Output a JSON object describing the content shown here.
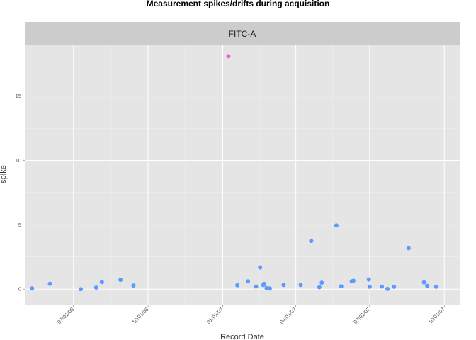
{
  "chart_data": {
    "type": "scatter",
    "title": "Measurement spikes/drifts during acquisition",
    "facet_label": "FITC-A",
    "xlabel": "Record Date",
    "ylabel": "spike",
    "x_ticks": [
      {
        "date": "2006-07-01",
        "label": "07/01/06"
      },
      {
        "date": "2006-10-01",
        "label": "10/01/06"
      },
      {
        "date": "2007-01-01",
        "label": "01/01/07"
      },
      {
        "date": "2007-04-01",
        "label": "04/01/07"
      },
      {
        "date": "2007-07-01",
        "label": "07/01/07"
      },
      {
        "date": "2007-10-01",
        "label": "10/01/07"
      }
    ],
    "y_ticks": [
      0,
      5,
      10,
      15
    ],
    "xlim": [
      "2006-05-02",
      "2007-10-20"
    ],
    "ylim": [
      -1.2,
      19.0
    ],
    "grid": true,
    "colors": {
      "panel_bg": "#e5e5e5",
      "strip_bg": "#cccccc",
      "grid": "#ffffff",
      "point_low": "#5b9bff",
      "point_high": "#f25ee2"
    },
    "points": [
      {
        "x": "2006-05-11",
        "y": 0.05
      },
      {
        "x": "2006-06-02",
        "y": 0.42
      },
      {
        "x": "2006-07-10",
        "y": 0.0
      },
      {
        "x": "2006-07-29",
        "y": 0.12
      },
      {
        "x": "2006-08-05",
        "y": 0.55
      },
      {
        "x": "2006-08-28",
        "y": 0.72
      },
      {
        "x": "2006-09-13",
        "y": 0.28
      },
      {
        "x": "2007-01-08",
        "y": 18.1,
        "highlight": true
      },
      {
        "x": "2007-01-19",
        "y": 0.3
      },
      {
        "x": "2007-02-01",
        "y": 0.6
      },
      {
        "x": "2007-02-11",
        "y": 0.2
      },
      {
        "x": "2007-02-16",
        "y": 1.68
      },
      {
        "x": "2007-02-20",
        "y": 0.32
      },
      {
        "x": "2007-02-21",
        "y": 0.4
      },
      {
        "x": "2007-02-24",
        "y": 0.08
      },
      {
        "x": "2007-02-28",
        "y": 0.05
      },
      {
        "x": "2007-03-17",
        "y": 0.32
      },
      {
        "x": "2007-04-07",
        "y": 0.32
      },
      {
        "x": "2007-04-20",
        "y": 3.75
      },
      {
        "x": "2007-04-30",
        "y": 0.15
      },
      {
        "x": "2007-05-03",
        "y": 0.5
      },
      {
        "x": "2007-05-21",
        "y": 4.95
      },
      {
        "x": "2007-05-27",
        "y": 0.22
      },
      {
        "x": "2007-06-09",
        "y": 0.6
      },
      {
        "x": "2007-06-11",
        "y": 0.65
      },
      {
        "x": "2007-06-30",
        "y": 0.75
      },
      {
        "x": "2007-07-01",
        "y": 0.18
      },
      {
        "x": "2007-07-16",
        "y": 0.2
      },
      {
        "x": "2007-07-23",
        "y": 0.02
      },
      {
        "x": "2007-07-31",
        "y": 0.18
      },
      {
        "x": "2007-08-18",
        "y": 3.18
      },
      {
        "x": "2007-09-06",
        "y": 0.52
      },
      {
        "x": "2007-09-10",
        "y": 0.25
      },
      {
        "x": "2007-09-21",
        "y": 0.18
      }
    ]
  }
}
